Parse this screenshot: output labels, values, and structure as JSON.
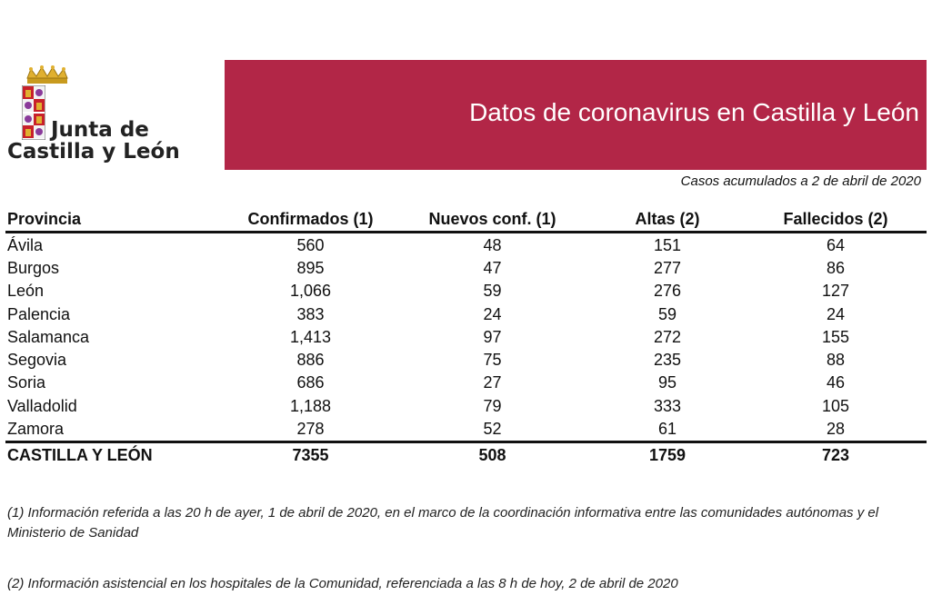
{
  "logo": {
    "line1": "Junta de",
    "line2": "Castilla y León"
  },
  "banner": {
    "title": "Datos de coronavirus en Castilla y León",
    "color": "#b22647"
  },
  "subtitle": "Casos acumulados a 2 de abril de 2020",
  "table": {
    "headers": [
      "Provincia",
      "Confirmados (1)",
      "Nuevos conf. (1)",
      "Altas (2)",
      "Fallecidos (2)"
    ],
    "rows": [
      [
        "Ávila",
        "560",
        "48",
        "151",
        "64"
      ],
      [
        "Burgos",
        "895",
        "47",
        "277",
        "86"
      ],
      [
        "León",
        "1,066",
        "59",
        "276",
        "127"
      ],
      [
        "Palencia",
        "383",
        "24",
        "59",
        "24"
      ],
      [
        "Salamanca",
        "1,413",
        "97",
        "272",
        "155"
      ],
      [
        "Segovia",
        "886",
        "75",
        "235",
        "88"
      ],
      [
        "Soria",
        "686",
        "27",
        "95",
        "46"
      ],
      [
        "Valladolid",
        "1,188",
        "79",
        "333",
        "105"
      ],
      [
        "Zamora",
        "278",
        "52",
        "61",
        "28"
      ]
    ],
    "total": [
      "CASTILLA Y LEÓN",
      "7355",
      "508",
      "1759",
      "723"
    ]
  },
  "notes": {
    "note1": "(1) Información referida a las 20 h de ayer, 1 de abril de 2020, en el marco de la coordinación informativa entre las comunidades autónomas y el Ministerio de Sanidad",
    "note2": "(2) Información asistencial en los hospitales de la Comunidad, referenciada a las 8 h de hoy, 2 de abril de 2020"
  }
}
